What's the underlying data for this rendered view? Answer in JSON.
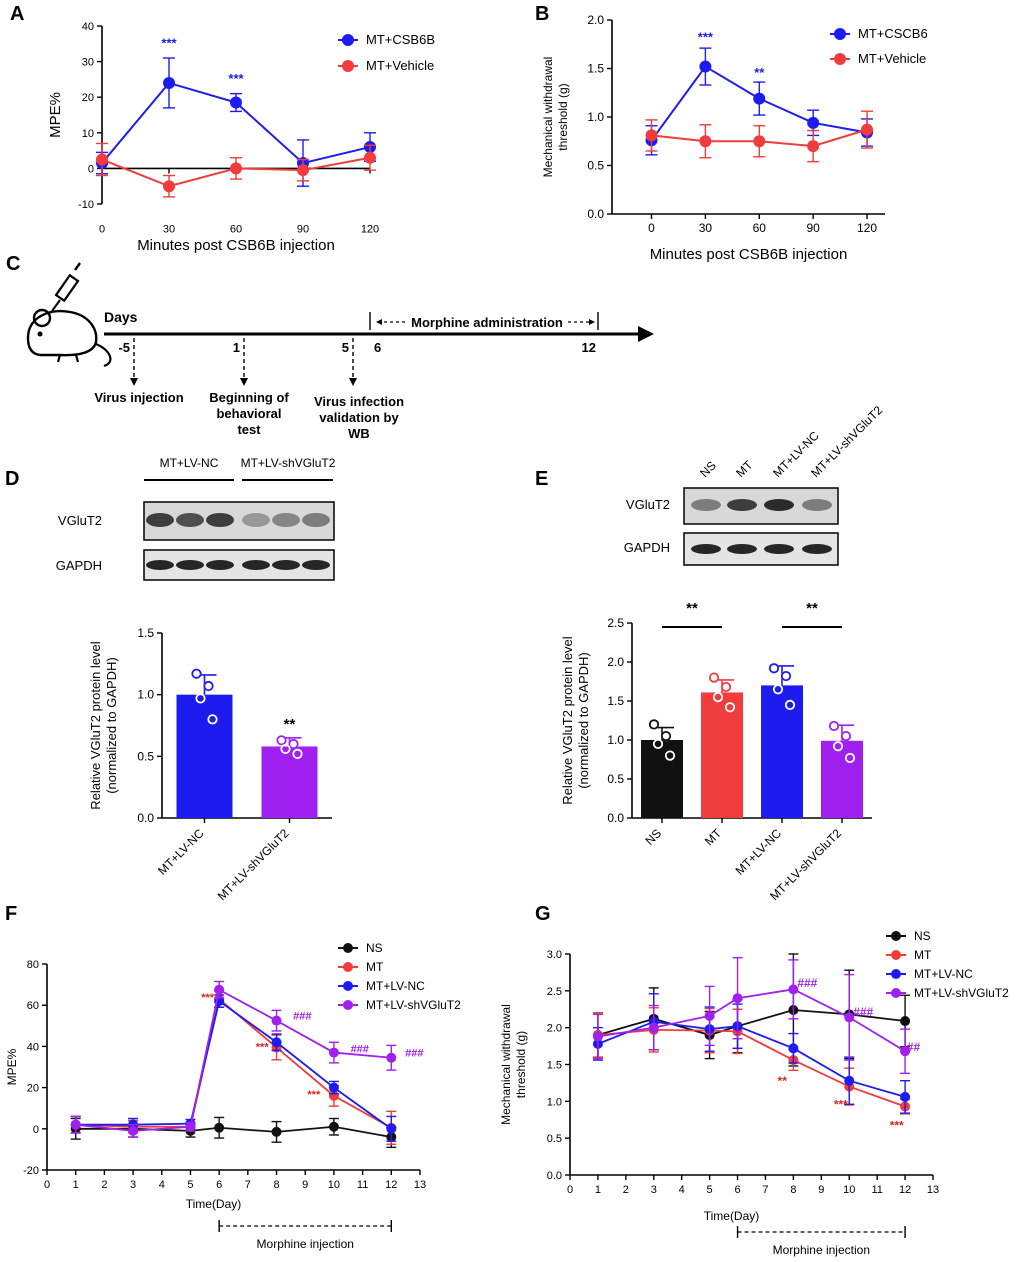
{
  "colors": {
    "blue": "#1c1cf0",
    "red": "#f03c3c",
    "black": "#111111",
    "purple": "#a020f0",
    "stat_red": "#e02020",
    "stat_blue": "#1c1cf0"
  },
  "chart_data": [
    {
      "panel": "A",
      "type": "line",
      "ylabel": "MPE%",
      "xlabel": "Minutes post CSB6B injection",
      "x": [
        0,
        30,
        60,
        90,
        120
      ],
      "xticks": [
        "0",
        "30",
        "60",
        "90",
        "120"
      ],
      "ylim": [
        -10,
        40
      ],
      "yticks": [
        "-10",
        "0",
        "10",
        "20",
        "30",
        "40"
      ],
      "series": [
        {
          "name": "MT+CSB6B",
          "color": "#1c1cf0",
          "values": [
            1.5,
            24,
            18.5,
            1.5,
            6
          ],
          "errors": [
            3,
            7,
            2.5,
            6.5,
            4
          ]
        },
        {
          "name": "MT+Vehicle",
          "color": "#f03c3c",
          "values": [
            2.5,
            -5,
            0,
            -0.5,
            3
          ],
          "errors": [
            4.5,
            3,
            3,
            3,
            3.5
          ]
        }
      ],
      "annotations": [
        {
          "text": "***",
          "x": 30,
          "y": 34,
          "color": "#1c1cf0"
        },
        {
          "text": "***",
          "x": 60,
          "y": 24,
          "color": "#1c1cf0"
        }
      ]
    },
    {
      "panel": "B",
      "type": "line",
      "ylabel": "Mechanical withdrawal threshold (g)",
      "xlabel": "Minutes  post CSB6B injection",
      "x": [
        0,
        30,
        60,
        90,
        120
      ],
      "xticks": [
        "0",
        "30",
        "60",
        "90",
        "120"
      ],
      "ylim": [
        0,
        2
      ],
      "yticks": [
        "0.0",
        "0.5",
        "1.0",
        "1.5",
        "2.0"
      ],
      "series": [
        {
          "name": "MT+CSCB6",
          "color": "#1c1cf0",
          "values": [
            0.76,
            1.52,
            1.19,
            0.94,
            0.84
          ],
          "errors": [
            0.15,
            0.19,
            0.17,
            0.13,
            0.14
          ]
        },
        {
          "name": "MT+Vehicle",
          "color": "#f03c3c",
          "values": [
            0.81,
            0.75,
            0.75,
            0.7,
            0.87
          ],
          "errors": [
            0.16,
            0.17,
            0.16,
            0.16,
            0.19
          ]
        }
      ],
      "annotations": [
        {
          "text": "***",
          "x": 30,
          "y": 1.78,
          "color": "#1c1cf0"
        },
        {
          "text": "**",
          "x": 60,
          "y": 1.41,
          "color": "#1c1cf0"
        }
      ]
    },
    {
      "panel": "D",
      "type": "bar",
      "ylabel": "Relative VGluT2 protein level (normalized to GAPDH)",
      "categories": [
        "MT+LV-NC",
        "MT+LV-shVGluT2"
      ],
      "values": [
        1.0,
        0.58
      ],
      "errors": [
        0.16,
        0.07
      ],
      "colors": [
        "#1c1cf0",
        "#a020f0"
      ],
      "points": [
        [
          1.17,
          1.07,
          0.97,
          0.8
        ],
        [
          0.63,
          0.6,
          0.56,
          0.52
        ]
      ],
      "ylim": [
        0,
        1.5
      ],
      "yticks": [
        "0.0",
        "0.5",
        "1.0",
        "1.5"
      ],
      "annotations": [
        {
          "text": "**",
          "category": 1,
          "y": 0.72
        }
      ]
    },
    {
      "panel": "E",
      "type": "bar",
      "ylabel": "Relative VGluT2 protein level (normalized to GAPDH)",
      "categories": [
        "NS",
        "MT",
        "MT+LV-NC",
        "MT+LV-shVGluT2"
      ],
      "values": [
        1.0,
        1.61,
        1.7,
        0.99
      ],
      "errors": [
        0.16,
        0.16,
        0.25,
        0.2
      ],
      "colors": [
        "#111111",
        "#f03c3c",
        "#1c1cf0",
        "#a020f0"
      ],
      "points": [
        [
          1.2,
          1.05,
          0.95,
          0.8
        ],
        [
          1.8,
          1.68,
          1.55,
          1.42
        ],
        [
          1.92,
          1.82,
          1.65,
          1.45
        ],
        [
          1.18,
          1.05,
          0.92,
          0.77
        ]
      ],
      "ylim": [
        0,
        2.5
      ],
      "yticks": [
        "0.0",
        "0.5",
        "1.0",
        "1.5",
        "2.0",
        "2.5"
      ],
      "comparisons": [
        {
          "from": 0,
          "to": 1,
          "text": "**"
        },
        {
          "from": 2,
          "to": 3,
          "text": "**"
        }
      ]
    },
    {
      "panel": "F",
      "type": "line",
      "ylabel": "MPE%",
      "xlabel": "Time(Day)",
      "x": [
        1,
        3,
        5,
        6,
        8,
        10,
        12
      ],
      "xlim": [
        0,
        13
      ],
      "xticks": [
        "0",
        "1",
        "2",
        "3",
        "4",
        "5",
        "6",
        "7",
        "8",
        "9",
        "10",
        "11",
        "12",
        "13"
      ],
      "ylim": [
        -20,
        80
      ],
      "yticks": [
        "-20",
        "0",
        "20",
        "40",
        "60",
        "80"
      ],
      "series": [
        {
          "name": "NS",
          "color": "#111111",
          "values": [
            0,
            0,
            -1,
            0.5,
            -1.5,
            1,
            -4
          ],
          "errors": [
            5,
            4,
            3,
            5,
            5,
            4,
            5
          ]
        },
        {
          "name": "MT",
          "color": "#f03c3c",
          "values": [
            2,
            1,
            1,
            63,
            39.5,
            16,
            0.5
          ],
          "errors": [
            4,
            3,
            2,
            4,
            6,
            5,
            8
          ]
        },
        {
          "name": "MT+LV-NC",
          "color": "#1c1cf0",
          "values": [
            2,
            2,
            2.5,
            62,
            42,
            20,
            0
          ],
          "errors": [
            4,
            3,
            2,
            3,
            4,
            3,
            6
          ]
        },
        {
          "name": "MT+LV-shVGluT2",
          "color": "#a020f0",
          "values": [
            2,
            -1,
            1,
            67.5,
            52.5,
            37,
            34.5
          ],
          "errors": [
            4,
            3,
            2,
            4,
            5,
            5,
            6
          ]
        }
      ],
      "annotations": [
        {
          "text": "***",
          "x": 5.6,
          "y": 62,
          "color": "#e02020"
        },
        {
          "text": "***",
          "x": 7.5,
          "y": 38,
          "color": "#e02020"
        },
        {
          "text": "***",
          "x": 9.3,
          "y": 15,
          "color": "#e02020"
        },
        {
          "text": "###",
          "x": 8.9,
          "y": 53,
          "color": "#a020f0"
        },
        {
          "text": "###",
          "x": 10.9,
          "y": 37,
          "color": "#a020f0"
        },
        {
          "text": "###",
          "x": 12.8,
          "y": 35,
          "color": "#a020f0"
        }
      ],
      "bracket_label": "Morphine injection"
    },
    {
      "panel": "G",
      "type": "line",
      "ylabel": "Mechanical withdrawal threshold (g)",
      "xlabel": "Time(Day)",
      "x": [
        1,
        3,
        5,
        6,
        8,
        10,
        12
      ],
      "xlim": [
        0,
        13
      ],
      "xticks": [
        "0",
        "1",
        "2",
        "3",
        "4",
        "5",
        "6",
        "7",
        "8",
        "9",
        "10",
        "11",
        "12",
        "13"
      ],
      "ylim": [
        0,
        3
      ],
      "yticks": [
        "0.0",
        "0.5",
        "1.0",
        "1.5",
        "2.0",
        "2.5",
        "3.0"
      ],
      "series": [
        {
          "name": "NS",
          "color": "#111111",
          "values": [
            1.9,
            2.12,
            1.9,
            2.02,
            2.24,
            2.18,
            2.09
          ],
          "errors": [
            0.3,
            0.42,
            0.32,
            0.36,
            0.76,
            0.6,
            0.35
          ]
        },
        {
          "name": "MT",
          "color": "#f03c3c",
          "values": [
            1.9,
            1.97,
            1.96,
            1.95,
            1.56,
            1.2,
            0.93
          ],
          "errors": [
            0.3,
            0.3,
            0.3,
            0.3,
            0.14,
            0.25,
            0.1
          ]
        },
        {
          "name": "MT+LV-NC",
          "color": "#1c1cf0",
          "values": [
            1.78,
            2.08,
            1.98,
            2.02,
            1.72,
            1.28,
            1.06
          ],
          "errors": [
            0.22,
            0.38,
            0.3,
            0.3,
            0.2,
            0.32,
            0.22
          ]
        },
        {
          "name": "MT+LV-shVGluT2",
          "color": "#a020f0",
          "values": [
            1.88,
            2.0,
            2.16,
            2.4,
            2.52,
            2.14,
            1.68
          ],
          "errors": [
            0.3,
            0.3,
            0.4,
            0.55,
            0.4,
            0.58,
            0.3
          ]
        }
      ],
      "annotations": [
        {
          "text": "**",
          "x": 7.6,
          "y": 1.22,
          "color": "#e02020"
        },
        {
          "text": "***",
          "x": 9.7,
          "y": 0.9,
          "color": "#e02020"
        },
        {
          "text": "***",
          "x": 11.7,
          "y": 0.62,
          "color": "#e02020"
        },
        {
          "text": "###",
          "x": 8.5,
          "y": 2.55,
          "color": "#a020f0"
        },
        {
          "text": "###",
          "x": 10.5,
          "y": 2.16,
          "color": "#a020f0"
        },
        {
          "text": "##",
          "x": 12.3,
          "y": 1.68,
          "color": "#a020f0"
        }
      ],
      "bracket_label": "Morphine injection"
    }
  ],
  "panel_C": {
    "days_label": "Days",
    "range_label": "Morphine administration",
    "days": [
      "-5",
      "1",
      "5",
      "6",
      "12"
    ],
    "events": [
      "Virus injection",
      "Beginning of behavioral test",
      "Virus infection validation by WB"
    ]
  },
  "blot_D": {
    "groups": [
      "MT+LV-NC",
      "MT+LV-shVGluT2"
    ],
    "rows": [
      "VGluT2",
      "GAPDH"
    ]
  },
  "blot_E": {
    "lanes": [
      "NS",
      "MT",
      "MT+LV-NC",
      "MT+LV-shVGluT2"
    ],
    "rows": [
      "VGluT2",
      "GAPDH"
    ]
  },
  "panel_labels": [
    "A",
    "B",
    "C",
    "D",
    "E",
    "F",
    "G"
  ]
}
